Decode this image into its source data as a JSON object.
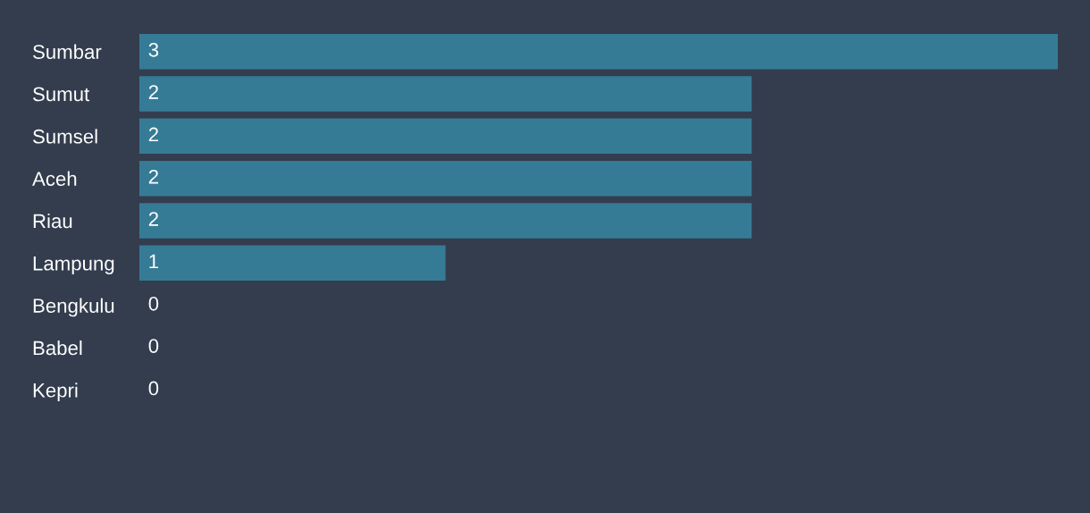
{
  "chart_data": {
    "type": "bar",
    "orientation": "horizontal",
    "categories": [
      "Sumbar",
      "Sumut",
      "Sumsel",
      "Aceh",
      "Riau",
      "Lampung",
      "Bengkulu",
      "Babel",
      "Kepri"
    ],
    "values": [
      3,
      2,
      2,
      2,
      2,
      1,
      0,
      0,
      0
    ],
    "color": "#367b96",
    "data_labels": true,
    "grid": false,
    "legend": false
  }
}
